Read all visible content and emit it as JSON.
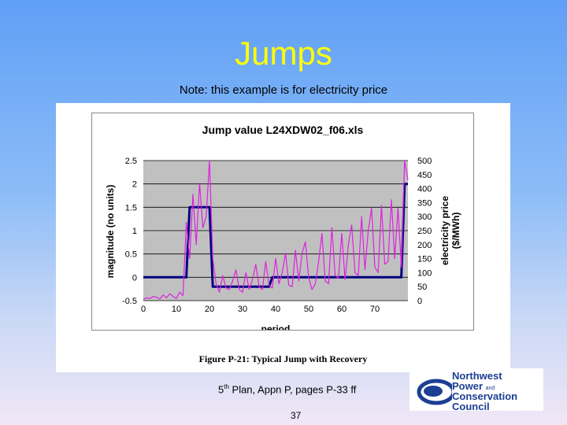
{
  "slide": {
    "title": "Jumps",
    "note": "Note: this example is for electricity price",
    "caption": "Figure P-21:  Typical Jump with Recovery",
    "footer_pre": "5",
    "footer_sup": "th",
    "footer_post": " Plan, Appn P, pages P-33 ff",
    "page_number": "37"
  },
  "logo": {
    "line1": "Northwest",
    "line2": "Power",
    "line2b": "and",
    "line3": "Conservation",
    "line4": "Council"
  },
  "chart_data": {
    "type": "line",
    "title": "Jump value L24XDW02_f06.xls",
    "xlabel": "period",
    "ylabel": "magnitude (no units)",
    "y2label_line1": "electricity price",
    "y2label_line2": "($/MWh)",
    "xlim": [
      0,
      80
    ],
    "ylim": [
      -0.5,
      2.5
    ],
    "y2lim": [
      0,
      500
    ],
    "xticks": [
      0,
      10,
      20,
      30,
      40,
      50,
      60,
      70
    ],
    "yticks": [
      -0.5,
      0,
      0.5,
      1,
      1.5,
      2,
      2.5
    ],
    "y2ticks": [
      0,
      50,
      100,
      150,
      200,
      250,
      300,
      350,
      400,
      450,
      500
    ],
    "grid": "horizontal",
    "plot_background": "#c0c0c0",
    "series": [
      {
        "axis": "left",
        "color": "#000080",
        "x": [
          0,
          13,
          14,
          20,
          21,
          38,
          39,
          78,
          79,
          80
        ],
        "y": [
          0,
          0,
          1.5,
          1.5,
          -0.2,
          -0.2,
          0,
          0,
          2,
          2
        ]
      },
      {
        "axis": "right",
        "color": "#e020e0",
        "x": [
          0,
          1,
          2,
          3,
          4,
          5,
          6,
          7,
          8,
          9,
          10,
          11,
          12,
          13,
          14,
          15,
          16,
          17,
          18,
          19,
          20,
          21,
          22,
          23,
          24,
          25,
          26,
          27,
          28,
          29,
          30,
          31,
          32,
          33,
          34,
          35,
          36,
          37,
          38,
          39,
          40,
          41,
          42,
          43,
          44,
          45,
          46,
          47,
          48,
          49,
          50,
          51,
          52,
          53,
          54,
          55,
          56,
          57,
          58,
          59,
          60,
          61,
          62,
          63,
          64,
          65,
          66,
          67,
          68,
          69,
          70,
          71,
          72,
          73,
          74,
          75,
          76,
          77,
          78,
          79,
          80
        ],
        "y": [
          5,
          10,
          8,
          15,
          12,
          6,
          20,
          10,
          25,
          15,
          8,
          30,
          18,
          280,
          150,
          380,
          200,
          420,
          260,
          300,
          500,
          150,
          60,
          30,
          90,
          45,
          40,
          70,
          110,
          40,
          30,
          100,
          40,
          75,
          130,
          50,
          40,
          140,
          55,
          45,
          150,
          60,
          100,
          170,
          55,
          50,
          180,
          70,
          170,
          210,
          80,
          40,
          60,
          140,
          240,
          70,
          60,
          260,
          90,
          80,
          240,
          75,
          200,
          270,
          100,
          90,
          300,
          110,
          250,
          330,
          120,
          100,
          340,
          130,
          140,
          360,
          150,
          330,
          120,
          500,
          430
        ]
      }
    ]
  }
}
